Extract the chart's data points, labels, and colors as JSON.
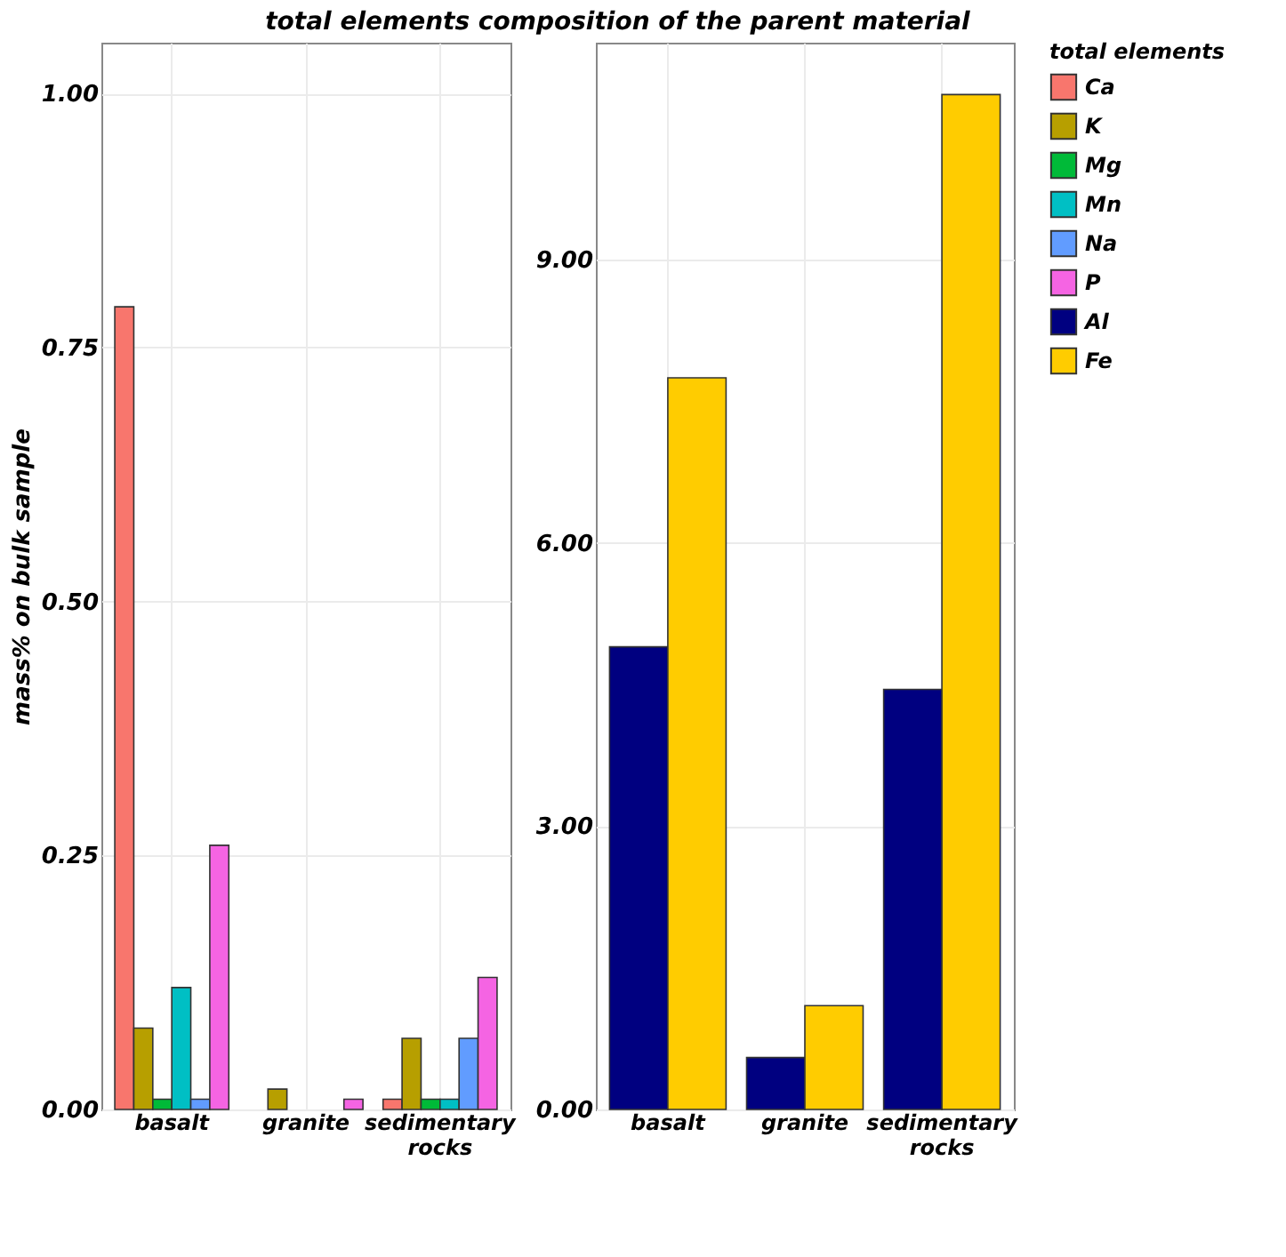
{
  "chart_data": [
    {
      "type": "bar",
      "title": "total elements composition of the parent material",
      "ylabel": "mass% on bulk sample",
      "legend_title": "total elements",
      "legend": "right",
      "grid": true,
      "categories": [
        "basalt",
        "granite",
        "sedimentary rocks"
      ],
      "ylim": [
        0,
        1.05
      ],
      "yticks": [
        {
          "value": 0,
          "label": "0.00"
        },
        {
          "value": 0.25,
          "label": "0.25"
        },
        {
          "value": 0.5,
          "label": "0.50"
        },
        {
          "value": 0.75,
          "label": "0.75"
        },
        {
          "value": 1,
          "label": "1.00"
        }
      ],
      "series": [
        {
          "name": "Ca",
          "color": "#f8766d",
          "values": [
            0.79,
            null,
            0.01
          ]
        },
        {
          "name": "K",
          "color": "#b79f00",
          "values": [
            0.08,
            0.02,
            0.07
          ]
        },
        {
          "name": "Mg",
          "color": "#00ba38",
          "values": [
            0.01,
            null,
            0.01
          ]
        },
        {
          "name": "Mn",
          "color": "#00bfc4",
          "values": [
            0.12,
            null,
            0.01
          ]
        },
        {
          "name": "Na",
          "color": "#619cff",
          "values": [
            0.01,
            null,
            0.07
          ]
        },
        {
          "name": "P",
          "color": "#f564e3",
          "values": [
            0.26,
            0.01,
            0.13
          ]
        }
      ]
    },
    {
      "type": "bar",
      "legend": "right",
      "grid": true,
      "categories": [
        "basalt",
        "granite",
        "sedimentary rocks"
      ],
      "ylim": [
        0,
        11.3
      ],
      "yticks": [
        {
          "value": 0,
          "label": "0.00"
        },
        {
          "value": 3,
          "label": "3.00"
        },
        {
          "value": 6,
          "label": "6.00"
        },
        {
          "value": 9,
          "label": "9.00"
        }
      ],
      "series": [
        {
          "name": "Al",
          "color": "#000080",
          "values": [
            4.9,
            0.55,
            4.45
          ]
        },
        {
          "name": "Fe",
          "color": "#ffcc00",
          "values": [
            7.75,
            1.1,
            10.75
          ]
        }
      ]
    }
  ]
}
